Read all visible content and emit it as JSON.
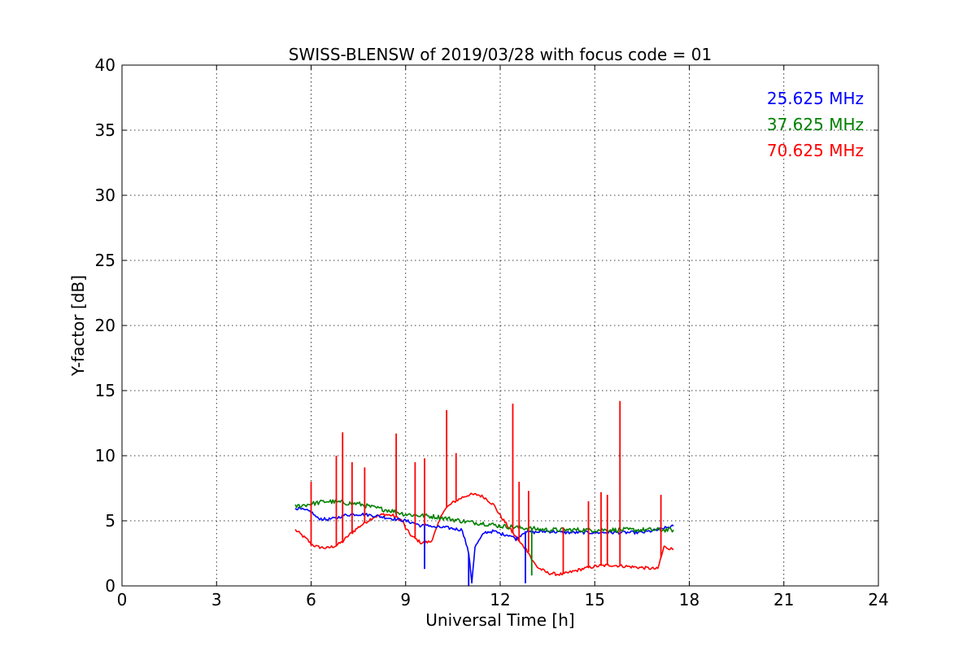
{
  "chart_data": {
    "type": "line",
    "title": "SWISS-BLENSW of 2019/03/28 with focus code = 01",
    "xlabel": "Universal Time [h]",
    "ylabel": "Y-factor [dB]",
    "xlim": [
      0,
      24
    ],
    "ylim": [
      0,
      40
    ],
    "xticks": [
      0,
      3,
      6,
      9,
      12,
      15,
      18,
      21,
      24
    ],
    "yticks": [
      0,
      5,
      10,
      15,
      20,
      25,
      30,
      35,
      40
    ],
    "xtick_labels": [
      "0",
      "3",
      "6",
      "9",
      "12",
      "15",
      "18",
      "21",
      "24"
    ],
    "ytick_labels": [
      "0",
      "5",
      "10",
      "15",
      "20",
      "25",
      "30",
      "35",
      "40"
    ],
    "grid": true,
    "legend_position": "top-right",
    "series": [
      {
        "name": "25.625 MHz",
        "color": "#0000ff",
        "x": [
          5.5,
          5.8,
          6.0,
          6.2,
          6.5,
          6.8,
          7.0,
          7.3,
          7.6,
          8.0,
          8.5,
          9.0,
          9.3,
          9.5,
          9.7,
          9.9,
          10.2,
          10.5,
          10.8,
          11.0,
          11.1,
          11.2,
          11.5,
          11.8,
          12.0,
          12.3,
          12.5,
          12.8,
          13.0,
          13.5,
          14.0,
          14.5,
          15.0,
          15.5,
          16.0,
          16.5,
          17.0,
          17.5
        ],
        "y": [
          6.0,
          5.8,
          5.7,
          5.2,
          5.1,
          5.2,
          5.4,
          5.5,
          5.5,
          5.4,
          5.2,
          5.0,
          4.8,
          4.6,
          4.7,
          4.5,
          4.5,
          4.4,
          4.3,
          2.5,
          0.3,
          3.0,
          4.1,
          4.2,
          4.0,
          3.9,
          3.6,
          4.2,
          4.1,
          4.2,
          4.1,
          4.1,
          4.1,
          4.1,
          4.1,
          4.1,
          4.3,
          4.6
        ]
      },
      {
        "name": "37.625 MHz",
        "color": "#008000",
        "x": [
          5.5,
          6.0,
          6.5,
          7.0,
          7.5,
          8.0,
          8.5,
          9.0,
          9.5,
          10.0,
          10.5,
          11.0,
          11.5,
          12.0,
          12.5,
          13.0,
          13.5,
          14.0,
          14.5,
          15.0,
          15.5,
          16.0,
          16.5,
          17.0,
          17.5
        ],
        "y": [
          6.1,
          6.3,
          6.5,
          6.4,
          6.3,
          6.0,
          5.8,
          5.5,
          5.4,
          5.3,
          5.1,
          4.9,
          4.8,
          4.6,
          4.5,
          4.4,
          4.3,
          4.3,
          4.3,
          4.3,
          4.3,
          4.3,
          4.3,
          4.3,
          4.3
        ]
      },
      {
        "name": "70.625 MHz",
        "color": "#ff0000",
        "x": [
          5.5,
          5.7,
          5.9,
          6.0,
          6.2,
          6.5,
          6.8,
          7.0,
          7.2,
          7.5,
          7.8,
          8.0,
          8.3,
          8.6,
          8.9,
          9.0,
          9.2,
          9.5,
          9.8,
          10.0,
          10.2,
          10.5,
          10.8,
          11.0,
          11.3,
          11.5,
          11.8,
          12.0,
          12.3,
          12.6,
          12.9,
          13.0,
          13.2,
          13.5,
          13.8,
          14.0,
          14.3,
          14.6,
          15.0,
          15.5,
          16.0,
          16.5,
          17.0,
          17.2,
          17.5
        ],
        "y": [
          4.3,
          3.9,
          3.5,
          3.2,
          3.0,
          2.9,
          3.1,
          3.4,
          3.9,
          4.5,
          5.0,
          5.3,
          5.5,
          5.4,
          5.0,
          4.4,
          3.8,
          3.3,
          3.4,
          4.5,
          5.8,
          6.4,
          6.8,
          7.0,
          7.0,
          6.8,
          6.2,
          5.4,
          4.4,
          3.4,
          2.6,
          2.0,
          1.4,
          1.0,
          0.9,
          0.9,
          1.1,
          1.3,
          1.5,
          1.6,
          1.5,
          1.4,
          1.3,
          3.0,
          2.8
        ]
      }
    ],
    "spikes": [
      {
        "series": 2,
        "x": 6.0,
        "y": 8.0
      },
      {
        "series": 2,
        "x": 6.8,
        "y": 10.0
      },
      {
        "series": 2,
        "x": 7.0,
        "y": 11.8
      },
      {
        "series": 2,
        "x": 7.3,
        "y": 9.5
      },
      {
        "series": 2,
        "x": 7.7,
        "y": 9.1
      },
      {
        "series": 2,
        "x": 8.7,
        "y": 11.7
      },
      {
        "series": 2,
        "x": 9.3,
        "y": 9.5
      },
      {
        "series": 2,
        "x": 9.6,
        "y": 9.8
      },
      {
        "series": 2,
        "x": 10.3,
        "y": 13.5
      },
      {
        "series": 2,
        "x": 10.6,
        "y": 10.2
      },
      {
        "series": 2,
        "x": 12.4,
        "y": 14.0
      },
      {
        "series": 2,
        "x": 12.6,
        "y": 8.0
      },
      {
        "series": 2,
        "x": 12.9,
        "y": 7.3
      },
      {
        "series": 2,
        "x": 14.0,
        "y": 4.5
      },
      {
        "series": 2,
        "x": 14.8,
        "y": 6.5
      },
      {
        "series": 2,
        "x": 15.2,
        "y": 7.2
      },
      {
        "series": 2,
        "x": 15.4,
        "y": 7.0
      },
      {
        "series": 2,
        "x": 15.8,
        "y": 14.2
      },
      {
        "series": 2,
        "x": 17.1,
        "y": 7.0
      },
      {
        "series": 0,
        "x": 9.6,
        "y": 1.3
      },
      {
        "series": 0,
        "x": 11.0,
        "y": 0.0
      },
      {
        "series": 0,
        "x": 12.8,
        "y": 0.2
      },
      {
        "series": 1,
        "x": 13.0,
        "y": 0.8
      }
    ]
  }
}
